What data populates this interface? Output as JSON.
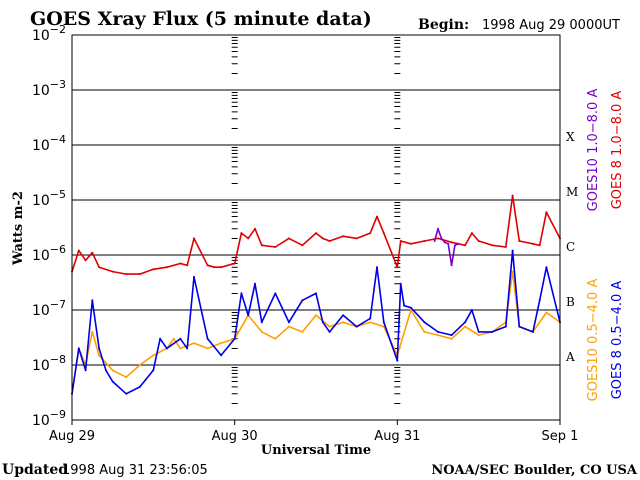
{
  "title": "GOES Xray Flux (5 minute data)",
  "begin_label": "Begin:",
  "begin_value": "1998 Aug 29 0000UT",
  "updated_label": "Updated",
  "updated_value": "1998 Aug 31 23:56:05",
  "credit": "NOAA/SEC Boulder, CO USA",
  "colors": {
    "goes8_long": "#e00000",
    "goes10_long": "#7a00c8",
    "goes10_short": "#ffa000",
    "goes8_short": "#0000e8",
    "frame": "#000000"
  },
  "chart_data": {
    "type": "line",
    "title": "GOES Xray Flux (5 minute data)",
    "xlabel": "Universal Time",
    "ylabel": "Watts m-2",
    "yscale": "log",
    "ylim": [
      1e-09,
      0.01
    ],
    "xlim": [
      0,
      72
    ],
    "x_unit": "hours since 1998 Aug 29 0000UT",
    "x_ticks": [
      {
        "x": 0,
        "label": "Aug 29"
      },
      {
        "x": 24,
        "label": "Aug 30"
      },
      {
        "x": 48,
        "label": "Aug 31"
      },
      {
        "x": 72,
        "label": "Sep 1"
      }
    ],
    "y_ticks": [
      {
        "exp": -2,
        "base": "10",
        "sup": "−2"
      },
      {
        "exp": -3,
        "base": "10",
        "sup": "−3"
      },
      {
        "exp": -4,
        "base": "10",
        "sup": "−4"
      },
      {
        "exp": -5,
        "base": "10",
        "sup": "−5"
      },
      {
        "exp": -6,
        "base": "10",
        "sup": "−6"
      },
      {
        "exp": -7,
        "base": "10",
        "sup": "−7"
      },
      {
        "exp": -8,
        "base": "10",
        "sup": "−8"
      },
      {
        "exp": -9,
        "base": "10",
        "sup": "−9"
      }
    ],
    "flare_classes": [
      {
        "label": "X",
        "exp": -4
      },
      {
        "label": "M",
        "exp": -5
      },
      {
        "label": "C",
        "exp": -6
      },
      {
        "label": "B",
        "exp": -7
      },
      {
        "label": "A",
        "exp": -8
      }
    ],
    "grid": true,
    "legend_placement": "right, rotated vertical",
    "series": [
      {
        "name": "GOES 8 1.0−8.0 A",
        "color": "#e00000",
        "x": [
          0,
          1,
          2,
          3,
          4,
          6,
          8,
          10,
          12,
          14,
          16,
          17,
          18,
          20,
          21,
          22,
          24,
          25,
          26,
          27,
          28,
          30,
          32,
          34,
          36,
          37,
          38,
          40,
          42,
          44,
          45,
          46,
          48,
          48.5,
          50,
          52,
          54,
          56,
          58,
          59,
          60,
          62,
          64,
          65,
          66,
          68,
          69,
          70,
          72
        ],
        "y": [
          5e-07,
          1.2e-06,
          8e-07,
          1.1e-06,
          6e-07,
          5e-07,
          4.5e-07,
          4.5e-07,
          5.5e-07,
          6e-07,
          7e-07,
          6.5e-07,
          2e-06,
          6.5e-07,
          6e-07,
          6e-07,
          7e-07,
          2.5e-06,
          2e-06,
          3e-06,
          1.5e-06,
          1.4e-06,
          2e-06,
          1.5e-06,
          2.5e-06,
          2e-06,
          1.8e-06,
          2.2e-06,
          2e-06,
          2.5e-06,
          5e-06,
          2.5e-06,
          6e-07,
          1.8e-06,
          1.6e-06,
          1.8e-06,
          2e-06,
          1.7e-06,
          1.5e-06,
          2.5e-06,
          1.8e-06,
          1.5e-06,
          1.4e-06,
          1.2e-05,
          1.8e-06,
          1.6e-06,
          1.5e-06,
          6e-06,
          2e-06
        ]
      },
      {
        "name": "GOES10 1.0−8.0 A",
        "color": "#7a00c8",
        "x": [
          53.5,
          54,
          54.5,
          55,
          55.5,
          56,
          56.5,
          57
        ],
        "y": [
          1.8e-06,
          3e-06,
          2e-06,
          1.7e-06,
          1.6e-06,
          6.5e-07,
          1.5e-06,
          1.6e-06
        ]
      },
      {
        "name": "GOES10 0.5−4.0 A",
        "color": "#ffa000",
        "x": [
          0,
          1,
          2,
          3,
          4,
          6,
          8,
          10,
          12,
          14,
          15,
          16,
          18,
          20,
          22,
          24,
          26,
          28,
          30,
          32,
          34,
          36,
          38,
          40,
          42,
          44,
          46,
          48,
          50,
          52,
          54,
          56,
          58,
          60,
          62,
          64,
          65,
          66,
          68,
          70,
          72
        ],
        "y": [
          3e-09,
          2e-08,
          1e-08,
          4e-08,
          1.5e-08,
          8e-09,
          6e-09,
          1e-08,
          1.5e-08,
          2e-08,
          3e-08,
          2e-08,
          2.5e-08,
          2e-08,
          2.5e-08,
          3e-08,
          8e-08,
          4e-08,
          3e-08,
          5e-08,
          4e-08,
          8e-08,
          5e-08,
          6e-08,
          5e-08,
          6e-08,
          5e-08,
          1.5e-08,
          1e-07,
          4e-08,
          3.5e-08,
          3e-08,
          5e-08,
          3.5e-08,
          4e-08,
          6e-08,
          5e-07,
          5e-08,
          4e-08,
          9e-08,
          6e-08
        ]
      },
      {
        "name": "GOES 8 0.5−4.0 A",
        "color": "#0000e8",
        "x": [
          0,
          1,
          2,
          3,
          4,
          5,
          6,
          8,
          10,
          12,
          13,
          14,
          16,
          17,
          18,
          20,
          22,
          24,
          25,
          26,
          27,
          28,
          30,
          32,
          34,
          36,
          37,
          38,
          40,
          42,
          44,
          45,
          46,
          48,
          48.5,
          49,
          50,
          52,
          54,
          56,
          58,
          59,
          60,
          62,
          64,
          65,
          66,
          68,
          69,
          70,
          72
        ],
        "y": [
          3e-09,
          2e-08,
          8e-09,
          1.5e-07,
          2e-08,
          8e-09,
          5e-09,
          3e-09,
          4e-09,
          8e-09,
          3e-08,
          2e-08,
          3e-08,
          2e-08,
          4e-07,
          3e-08,
          1.5e-08,
          3e-08,
          2e-07,
          8e-08,
          3e-07,
          6e-08,
          2e-07,
          6e-08,
          1.5e-07,
          2e-07,
          6e-08,
          4e-08,
          8e-08,
          5e-08,
          7e-08,
          6e-07,
          6e-08,
          1.2e-08,
          3e-07,
          1.2e-07,
          1.1e-07,
          6e-08,
          4e-08,
          3.5e-08,
          6e-08,
          1e-07,
          4e-08,
          4e-08,
          5e-08,
          1.2e-06,
          5e-08,
          4e-08,
          1.5e-07,
          6e-07,
          6e-08
        ]
      }
    ]
  }
}
